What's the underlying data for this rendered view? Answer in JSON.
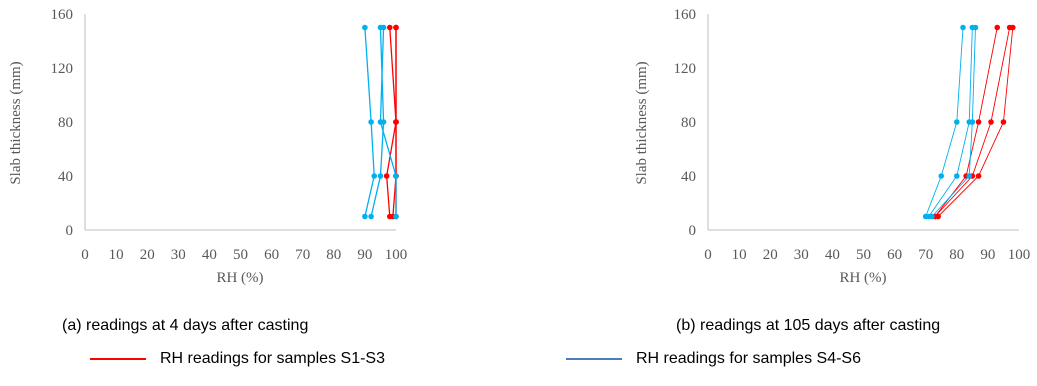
{
  "captions": {
    "a": "(a) readings at 4 days after casting",
    "b": "(b) readings at 105 days after casting"
  },
  "legend": {
    "red_label": "RH readings for samples S1-S3",
    "blue_label": "RH readings for samples S4-S6"
  },
  "colors": {
    "red": "#ff0000",
    "blue": "#00b0f0",
    "blue_legend": "#4a7ebb",
    "axis": "#bfbfbf"
  },
  "chart_data": [
    {
      "type": "line",
      "title": "",
      "xlabel": "RH (%)",
      "ylabel": "Slab thickness (mm)",
      "xlim": [
        0,
        100
      ],
      "ylim": [
        0,
        160
      ],
      "xticks": [
        "0",
        "10",
        "20",
        "30",
        "40",
        "50",
        "60",
        "70",
        "80",
        "90",
        "100"
      ],
      "yticks": [
        "0",
        "40",
        "80",
        "120",
        "160"
      ],
      "y": [
        10,
        40,
        80,
        150
      ],
      "series": [
        {
          "group": "S1-S3",
          "color": "red",
          "x": [
            98,
            97,
            100,
            98
          ]
        },
        {
          "group": "S1-S3",
          "color": "red",
          "x": [
            99,
            100,
            100,
            100
          ]
        },
        {
          "group": "S1-S3",
          "color": "red",
          "x": [
            100,
            100,
            100,
            100
          ]
        },
        {
          "group": "S4-S6",
          "color": "blue",
          "x": [
            90,
            93,
            92,
            90
          ]
        },
        {
          "group": "S4-S6",
          "color": "blue",
          "x": [
            92,
            95,
            96,
            95
          ]
        },
        {
          "group": "S4-S6",
          "color": "blue",
          "x": [
            100,
            100,
            95,
            96
          ]
        }
      ]
    },
    {
      "type": "line",
      "title": "",
      "xlabel": "RH (%)",
      "ylabel": "Slab thickness (mm)",
      "xlim": [
        0,
        100
      ],
      "ylim": [
        0,
        160
      ],
      "xticks": [
        "0",
        "10",
        "20",
        "30",
        "40",
        "50",
        "60",
        "70",
        "80",
        "90",
        "100"
      ],
      "yticks": [
        "0",
        "40",
        "80",
        "120",
        "160"
      ],
      "y": [
        10,
        40,
        80,
        150
      ],
      "series": [
        {
          "group": "S1-S3",
          "color": "red",
          "x": [
            73,
            83,
            87,
            93
          ]
        },
        {
          "group": "S1-S3",
          "color": "red",
          "x": [
            73,
            85,
            91,
            97
          ]
        },
        {
          "group": "S1-S3",
          "color": "red",
          "x": [
            74,
            87,
            95,
            98
          ]
        },
        {
          "group": "S4-S6",
          "color": "blue",
          "x": [
            70,
            75,
            80,
            82
          ]
        },
        {
          "group": "S4-S6",
          "color": "blue",
          "x": [
            71,
            80,
            84,
            85
          ]
        },
        {
          "group": "S4-S6",
          "color": "blue",
          "x": [
            72,
            84,
            85,
            86
          ]
        }
      ]
    }
  ]
}
